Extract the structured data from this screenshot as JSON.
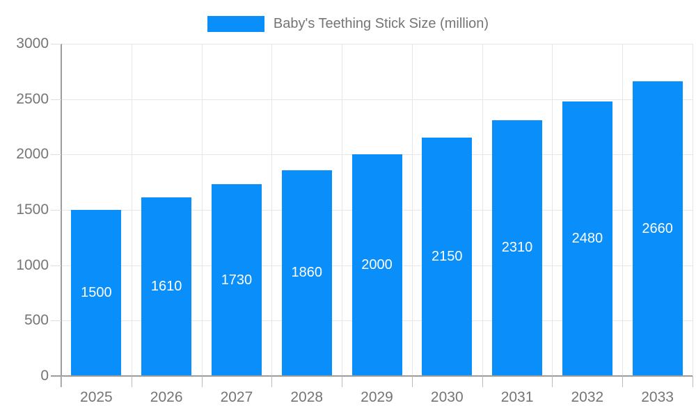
{
  "chart_data": {
    "type": "bar",
    "title": "Baby's Teething Stick Size (million)",
    "categories": [
      "2025",
      "2026",
      "2027",
      "2028",
      "2029",
      "2030",
      "2031",
      "2032",
      "2033"
    ],
    "values": [
      1500,
      1610,
      1730,
      1860,
      2000,
      2150,
      2310,
      2480,
      2660
    ],
    "xlabel": "",
    "ylabel": "",
    "ylim": [
      0,
      3000
    ],
    "ytick_interval": 500,
    "yticks": [
      0,
      500,
      1000,
      1500,
      2000,
      2500,
      3000
    ],
    "grid": true,
    "legend_position": "top",
    "bar_color": "#0a8ef9",
    "bar_label_color": "#ffffff",
    "axis_text_color": "#757575",
    "gridline_color": "#e6e6e6",
    "axis_line_color": "#9b9b9b"
  },
  "legend": {
    "label": "Baby's Teething Stick Size (million)"
  }
}
